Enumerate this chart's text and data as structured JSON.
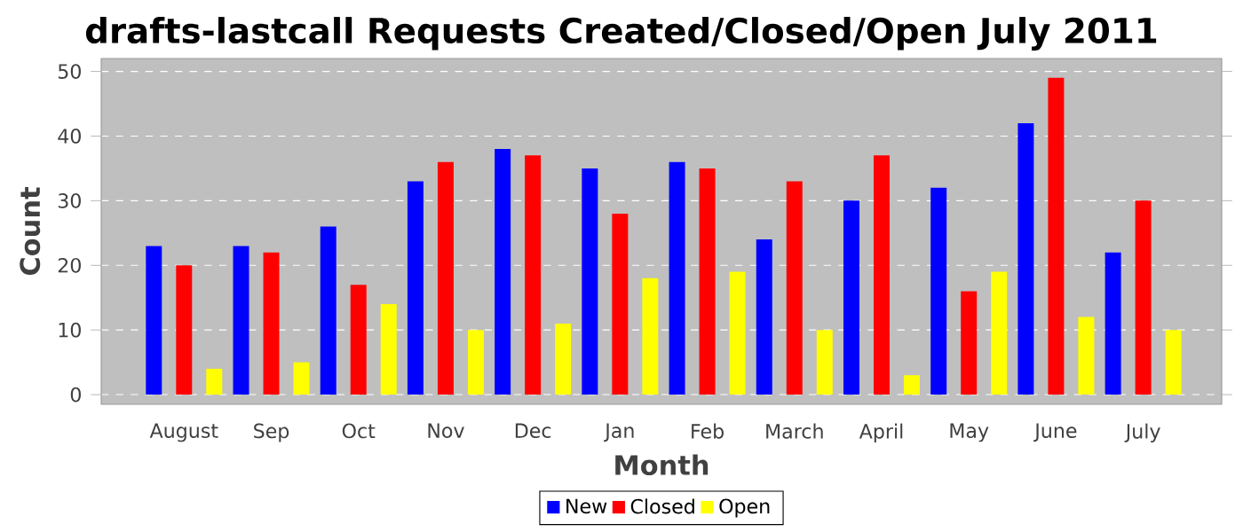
{
  "chart_data": {
    "type": "bar",
    "title": "drafts-lastcall Requests Created/Closed/Open July 2011",
    "xlabel": "Month",
    "ylabel": "Count",
    "categories": [
      "August",
      "Sep",
      "Oct",
      "Nov",
      "Dec",
      "Jan",
      "Feb",
      "March",
      "April",
      "May",
      "June",
      "July"
    ],
    "series": [
      {
        "name": "New",
        "color": "#0000ff",
        "values": [
          23,
          23,
          26,
          33,
          38,
          35,
          36,
          24,
          30,
          32,
          42,
          22
        ]
      },
      {
        "name": "Closed",
        "color": "#ff0000",
        "values": [
          20,
          22,
          17,
          36,
          37,
          28,
          35,
          33,
          37,
          16,
          49,
          30
        ]
      },
      {
        "name": "Open",
        "color": "#ffff00",
        "values": [
          4,
          5,
          14,
          10,
          11,
          18,
          19,
          10,
          3,
          19,
          12,
          10
        ]
      }
    ],
    "ylim": [
      -1.5,
      52
    ],
    "yticks": [
      0,
      10,
      20,
      30,
      40,
      50
    ],
    "grid": "y",
    "legend": "bottom"
  }
}
